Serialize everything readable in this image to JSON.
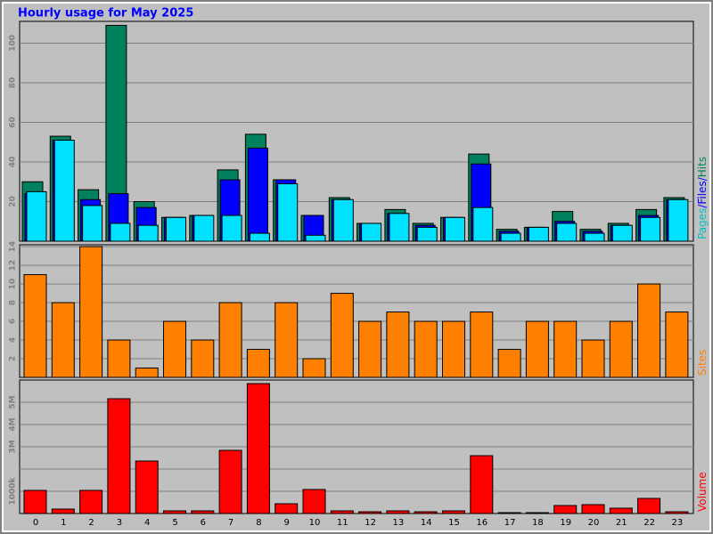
{
  "chart_data": [
    {
      "type": "layered-bar",
      "title": "Hourly usage for May 2025",
      "legend_separator": "/",
      "ylim": [
        0,
        111
      ],
      "yticks": [
        20,
        40,
        60,
        80,
        100
      ],
      "grid": true,
      "series": [
        {
          "name": "Hits",
          "color": "#00805c",
          "values": [
            30,
            53,
            26,
            109,
            20,
            12,
            13,
            36,
            54,
            31,
            13,
            22,
            9,
            16,
            9,
            12,
            44,
            6,
            7,
            15,
            6,
            9,
            16,
            22
          ]
        },
        {
          "name": "Files",
          "color": "#0000ff",
          "values": [
            24,
            51,
            21,
            24,
            17,
            12,
            13,
            31,
            47,
            31,
            13,
            21,
            9,
            14,
            8,
            12,
            39,
            5,
            7,
            10,
            5,
            8,
            13,
            21
          ]
        },
        {
          "name": "Pages",
          "color": "#00e0ff",
          "values": [
            25,
            51,
            18,
            9,
            8,
            12,
            13,
            13,
            4,
            29,
            3,
            21,
            9,
            14,
            7,
            12,
            17,
            4,
            7,
            9,
            4,
            8,
            12,
            21
          ]
        }
      ]
    },
    {
      "type": "bar",
      "ylim": [
        0,
        14.2
      ],
      "yticks": [
        2,
        4,
        6,
        8,
        10,
        12,
        14
      ],
      "grid": true,
      "series": [
        {
          "name": "Sites",
          "color": "#ff8000",
          "values": [
            11,
            8,
            14,
            4,
            1,
            6,
            4,
            8,
            3,
            8,
            2,
            9,
            6,
            7,
            6,
            6,
            7,
            3,
            6,
            6,
            4,
            6,
            10,
            7
          ]
        }
      ]
    },
    {
      "type": "bar",
      "ylim": [
        0,
        6000
      ],
      "grid": true,
      "yticks": [
        {
          "value": 1000,
          "label": "1000k"
        },
        {
          "value": 2000,
          "label": null
        },
        {
          "value": 3000,
          "label": "3M"
        },
        {
          "value": 4000,
          "label": "4M"
        },
        {
          "value": 5000,
          "label": "5M"
        }
      ],
      "categories": [
        "0",
        "1",
        "2",
        "3",
        "4",
        "5",
        "6",
        "7",
        "8",
        "9",
        "10",
        "11",
        "12",
        "13",
        "14",
        "15",
        "16",
        "17",
        "18",
        "19",
        "20",
        "21",
        "22",
        "23"
      ],
      "series": [
        {
          "name": "Volume",
          "color": "#ff0000",
          "values": [
            1040,
            200,
            1040,
            5160,
            2360,
            120,
            120,
            2840,
            5840,
            440,
            1080,
            120,
            80,
            120,
            80,
            120,
            2600,
            40,
            40,
            360,
            400,
            240,
            680,
            80
          ]
        }
      ]
    }
  ]
}
